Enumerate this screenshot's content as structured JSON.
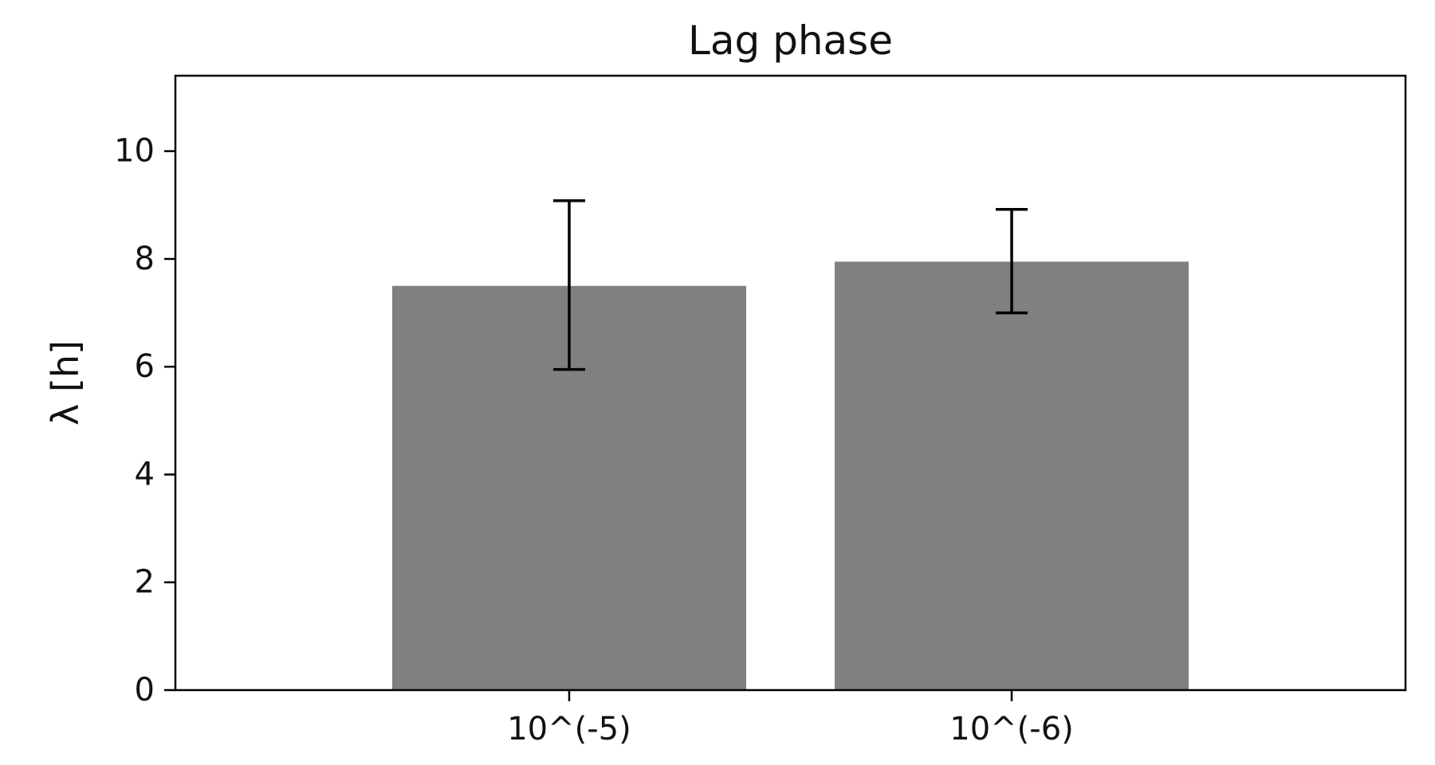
{
  "chart_data": {
    "type": "bar",
    "title": "Lag phase",
    "xlabel": "",
    "ylabel": "λ [h]",
    "categories": [
      "10^(-5)",
      "10^(-6)"
    ],
    "values": [
      7.5,
      7.95
    ],
    "errors": [
      [
        5.95,
        9.08
      ],
      [
        7.0,
        8.92
      ]
    ],
    "ylim": [
      0,
      11.4
    ],
    "yticks": [
      0,
      2,
      4,
      6,
      8,
      10
    ],
    "grid": false,
    "colors": {
      "bar": "#808080",
      "errorbar": "#000000",
      "axis": "#000000"
    }
  }
}
